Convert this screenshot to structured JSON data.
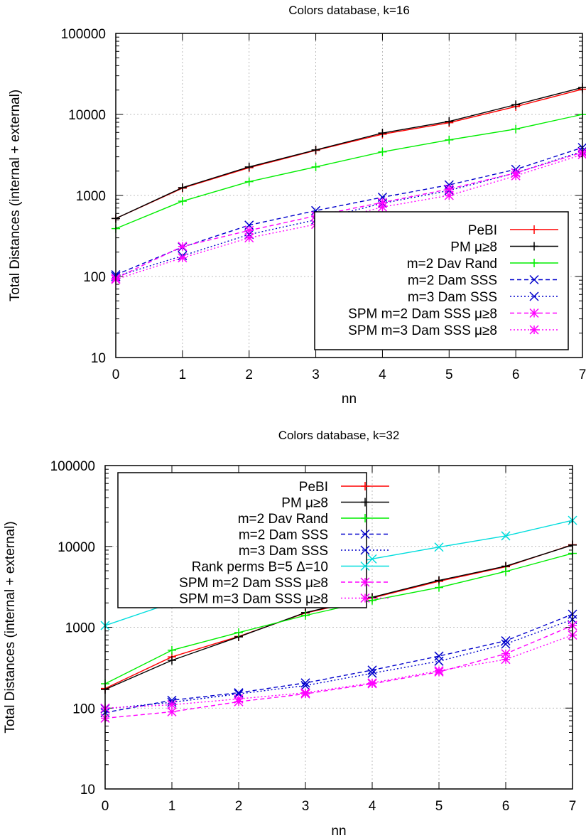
{
  "chart_data": [
    {
      "type": "line",
      "title": "Colors database, k=16",
      "xlabel": "nn",
      "ylabel": "Total Distances (internal + external)",
      "yscale": "log",
      "ylim": [
        10,
        100000
      ],
      "xlim": [
        0,
        7
      ],
      "grid": true,
      "legend_position": "bottom-right",
      "x": [
        0,
        1,
        2,
        3,
        4,
        5,
        6,
        7
      ],
      "xticks": [
        "0",
        "1",
        "2",
        "3",
        "4",
        "5",
        "6",
        "7"
      ],
      "yticks": [
        "10",
        "100",
        "1000",
        "10000",
        "100000"
      ],
      "series": [
        {
          "name": "PeBI",
          "color": "#ff0000",
          "dash": "solid",
          "marker": "plus",
          "values": [
            520,
            1230,
            2200,
            3600,
            5700,
            7900,
            12500,
            20500
          ]
        },
        {
          "name": "PM μ≥8",
          "color": "#000000",
          "dash": "solid",
          "marker": "plus",
          "values": [
            520,
            1250,
            2250,
            3650,
            5900,
            8200,
            13200,
            21500
          ]
        },
        {
          "name": "m=2 Dav Rand",
          "color": "#00ee00",
          "dash": "solid",
          "marker": "plus",
          "values": [
            390,
            850,
            1480,
            2250,
            3450,
            4850,
            6600,
            10000
          ]
        },
        {
          "name": "m=2 Dam SSS",
          "color": "#0000cc",
          "dash": "dashed",
          "marker": "x",
          "values": [
            105,
            230,
            430,
            650,
            950,
            1350,
            2100,
            3900
          ]
        },
        {
          "name": "m=3 Dam SSS",
          "color": "#0000cc",
          "dash": "dotted",
          "marker": "x",
          "values": [
            100,
            180,
            330,
            500,
            800,
            1150,
            1900,
            3500
          ]
        },
        {
          "name": "SPM m=2 Dam SSS μ≥8",
          "color": "#ff00ff",
          "dash": "dashed",
          "marker": "star",
          "values": [
            95,
            235,
            370,
            560,
            820,
            1200,
            1900,
            3400
          ]
        },
        {
          "name": "SPM m=3 Dam SSS μ≥8",
          "color": "#ff00ff",
          "dash": "dotted",
          "marker": "star",
          "values": [
            92,
            170,
            300,
            440,
            720,
            1000,
            1750,
            3200
          ]
        }
      ]
    },
    {
      "type": "line",
      "title": "Colors database, k=32",
      "xlabel": "nn",
      "ylabel": "Total Distances (internal + external)",
      "yscale": "log",
      "ylim": [
        10,
        100000
      ],
      "xlim": [
        0,
        7
      ],
      "grid": true,
      "legend_position": "top-left",
      "x": [
        0,
        1,
        2,
        3,
        4,
        5,
        6,
        7
      ],
      "xticks": [
        "0",
        "1",
        "2",
        "3",
        "4",
        "5",
        "6",
        "7"
      ],
      "yticks": [
        "10",
        "100",
        "1000",
        "10000",
        "100000"
      ],
      "series": [
        {
          "name": "PeBI",
          "color": "#ff0000",
          "dash": "solid",
          "marker": "plus",
          "values": [
            175,
            430,
            770,
            1500,
            2300,
            3700,
            5600,
            10500
          ]
        },
        {
          "name": "PM μ≥8",
          "color": "#000000",
          "dash": "solid",
          "marker": "plus",
          "values": [
            170,
            390,
            760,
            1520,
            2350,
            3800,
            5700,
            10400
          ]
        },
        {
          "name": "m=2 Dav Rand",
          "color": "#00ee00",
          "dash": "solid",
          "marker": "plus",
          "values": [
            200,
            520,
            860,
            1400,
            2150,
            3100,
            4900,
            8200
          ]
        },
        {
          "name": "m=2 Dam SSS",
          "color": "#0000cc",
          "dash": "dashed",
          "marker": "x",
          "values": [
            88,
            125,
            155,
            205,
            295,
            440,
            680,
            1450
          ]
        },
        {
          "name": "m=3 Dam SSS",
          "color": "#0000cc",
          "dash": "dotted",
          "marker": "x",
          "values": [
            98,
            118,
            150,
            190,
            270,
            380,
            620,
            1250
          ]
        },
        {
          "name": "Rank perms B=5 Δ=10",
          "color": "#00dddd",
          "dash": "solid",
          "marker": "x",
          "values": [
            1050,
            2000,
            3200,
            4800,
            7000,
            9800,
            13500,
            21000
          ]
        },
        {
          "name": "SPM m=2 Dam SSS μ≥8",
          "color": "#ff00ff",
          "dash": "dashed",
          "marker": "star",
          "values": [
            75,
            90,
            120,
            150,
            200,
            280,
            470,
            1050
          ]
        },
        {
          "name": "SPM m=3 Dam SSS μ≥8",
          "color": "#ff00ff",
          "dash": "dotted",
          "marker": "star",
          "values": [
            100,
            110,
            130,
            155,
            205,
            290,
            400,
            800
          ]
        }
      ]
    }
  ]
}
